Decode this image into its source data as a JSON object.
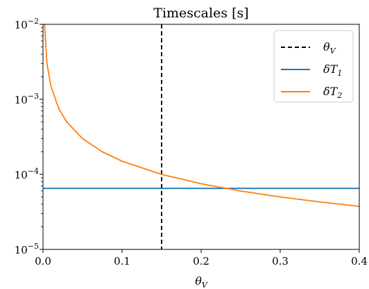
{
  "chart_data": {
    "type": "line",
    "title": "Timescales [s]",
    "xlabel": "θ_V",
    "ylabel": "",
    "xlim": [
      0.0,
      0.4
    ],
    "ylim": [
      1e-05,
      0.01
    ],
    "yscale": "log",
    "grid": false,
    "legend_position": "top-right",
    "x_ticks": [
      {
        "value": 0.0,
        "label": "0.0"
      },
      {
        "value": 0.1,
        "label": "0.1"
      },
      {
        "value": 0.2,
        "label": "0.2"
      },
      {
        "value": 0.3,
        "label": "0.3"
      },
      {
        "value": 0.4,
        "label": "0.4"
      }
    ],
    "y_ticks": [
      {
        "value": 1e-05,
        "base": "10",
        "exp": "−5"
      },
      {
        "value": 0.0001,
        "base": "10",
        "exp": "−4"
      },
      {
        "value": 0.001,
        "base": "10",
        "exp": "−3"
      },
      {
        "value": 0.01,
        "base": "10",
        "exp": "−2"
      }
    ],
    "series": [
      {
        "name": "θ_V",
        "color": "#000000",
        "style": "dashed",
        "kind": "vertical",
        "x": 0.15
      },
      {
        "name": "δT_1",
        "color": "#1f77b4",
        "style": "solid",
        "kind": "horizontal",
        "y": 6.5e-05
      },
      {
        "name": "δT_2",
        "color": "#ff7f0e",
        "style": "solid",
        "kind": "curve",
        "points": [
          [
            0.002,
            0.01
          ],
          [
            0.005,
            0.003
          ],
          [
            0.01,
            0.0015
          ],
          [
            0.02,
            0.00075
          ],
          [
            0.03,
            0.0005
          ],
          [
            0.05,
            0.0003
          ],
          [
            0.075,
            0.0002
          ],
          [
            0.1,
            0.00015
          ],
          [
            0.15,
            0.0001
          ],
          [
            0.2,
            7.5e-05
          ],
          [
            0.25,
            6e-05
          ],
          [
            0.3,
            5e-05
          ],
          [
            0.35,
            4.3e-05
          ],
          [
            0.4,
            3.75e-05
          ]
        ]
      }
    ]
  }
}
